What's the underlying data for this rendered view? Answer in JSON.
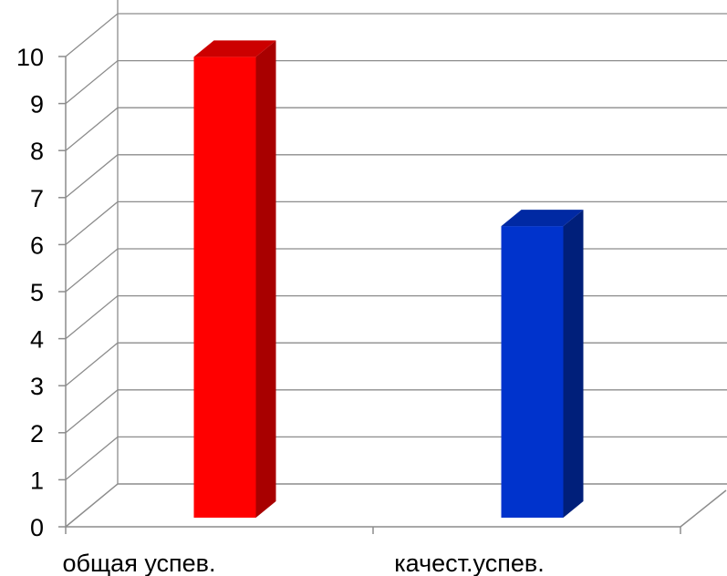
{
  "chart_data": {
    "type": "bar",
    "style": "3d-column",
    "categories": [
      "общая успев.",
      "качест.успев."
    ],
    "series": [
      {
        "values": [
          9.8,
          6.2
        ]
      }
    ],
    "bar_colors": [
      "#ff0000",
      "#0033cc"
    ],
    "bar_side_colors": [
      "#a80000",
      "#001f7a"
    ],
    "bar_top_colors": [
      "#cc0000",
      "#0029a3"
    ],
    "ylim": [
      0,
      10
    ],
    "yticks": [
      "0",
      "1",
      "2",
      "3",
      "4",
      "5",
      "6",
      "7",
      "8",
      "9",
      "10"
    ],
    "grid": true,
    "legend": "none"
  }
}
